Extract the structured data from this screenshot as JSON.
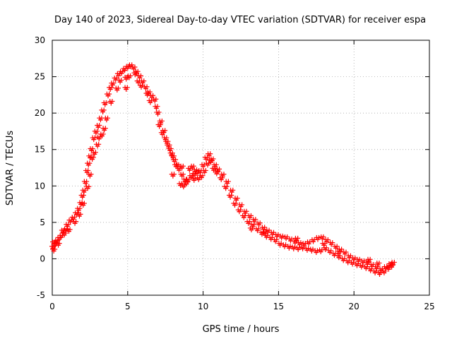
{
  "chart_data": {
    "type": "scatter",
    "title": "Day 140 of 2023, Sidereal Day-to-day VTEC variation (SDTVAR) for receiver espa",
    "xlabel": "GPS time / hours",
    "ylabel": "SDTVAR / TECUs",
    "xlim": [
      0,
      25
    ],
    "ylim": [
      -5,
      30
    ],
    "x_ticks": [
      0,
      5,
      10,
      15,
      20,
      25
    ],
    "y_ticks": [
      -5,
      0,
      5,
      10,
      15,
      20,
      25,
      30
    ],
    "grid": true,
    "marker": "plus",
    "series": [
      {
        "name": "espa",
        "color": "#ff0000",
        "points": [
          [
            0.05,
            1.6
          ],
          [
            0.1,
            1.2
          ],
          [
            0.2,
            2.0
          ],
          [
            0.3,
            2.4
          ],
          [
            0.45,
            2.8
          ],
          [
            0.6,
            3.1
          ],
          [
            0.8,
            3.4
          ],
          [
            0.9,
            4.0
          ],
          [
            1.0,
            4.6
          ],
          [
            1.2,
            5.2
          ],
          [
            1.4,
            5.6
          ],
          [
            1.6,
            6.2
          ],
          [
            1.75,
            6.8
          ],
          [
            1.9,
            7.6
          ],
          [
            2.0,
            8.6
          ],
          [
            2.1,
            9.3
          ],
          [
            2.2,
            10.5
          ],
          [
            2.3,
            12.0
          ],
          [
            2.4,
            13.0
          ],
          [
            2.5,
            14.0
          ],
          [
            2.6,
            15.0
          ],
          [
            2.75,
            16.5
          ],
          [
            2.9,
            17.4
          ],
          [
            3.05,
            18.2
          ],
          [
            3.2,
            19.2
          ],
          [
            3.35,
            20.3
          ],
          [
            3.5,
            21.3
          ],
          [
            3.7,
            22.5
          ],
          [
            3.85,
            23.4
          ],
          [
            4.0,
            24.0
          ],
          [
            4.2,
            24.7
          ],
          [
            4.4,
            25.3
          ],
          [
            4.6,
            25.6
          ],
          [
            4.8,
            26.0
          ],
          [
            5.0,
            26.3
          ],
          [
            5.2,
            26.5
          ],
          [
            5.4,
            26.2
          ],
          [
            5.6,
            25.6
          ],
          [
            5.8,
            25.0
          ],
          [
            6.0,
            24.3
          ],
          [
            6.2,
            23.5
          ],
          [
            6.4,
            22.8
          ],
          [
            6.6,
            22.3
          ],
          [
            6.8,
            21.8
          ],
          [
            7.0,
            20.0
          ],
          [
            7.2,
            18.8
          ],
          [
            7.4,
            17.5
          ],
          [
            7.6,
            16.0
          ],
          [
            7.8,
            15.0
          ],
          [
            8.0,
            14.0
          ],
          [
            8.2,
            12.8
          ],
          [
            8.4,
            12.3
          ],
          [
            8.6,
            11.5
          ],
          [
            8.8,
            10.8
          ],
          [
            9.0,
            10.8
          ],
          [
            9.2,
            11.3
          ],
          [
            9.4,
            11.6
          ],
          [
            9.6,
            11.8
          ],
          [
            9.8,
            12.0
          ],
          [
            10.0,
            12.8
          ],
          [
            10.2,
            13.8
          ],
          [
            10.4,
            14.3
          ],
          [
            10.6,
            13.6
          ],
          [
            10.8,
            12.8
          ],
          [
            11.0,
            12.2
          ],
          [
            11.3,
            11.5
          ],
          [
            11.6,
            10.5
          ],
          [
            11.9,
            9.3
          ],
          [
            12.2,
            8.2
          ],
          [
            12.5,
            7.3
          ],
          [
            12.8,
            6.4
          ],
          [
            13.1,
            5.8
          ],
          [
            13.4,
            5.3
          ],
          [
            13.7,
            4.8
          ],
          [
            14.0,
            4.2
          ],
          [
            14.3,
            3.8
          ],
          [
            14.6,
            3.5
          ],
          [
            14.9,
            3.2
          ],
          [
            15.2,
            3.0
          ],
          [
            15.5,
            2.9
          ],
          [
            15.8,
            2.6
          ],
          [
            16.1,
            2.3
          ],
          [
            16.4,
            2.1
          ],
          [
            16.7,
            2.0
          ],
          [
            17.0,
            2.2
          ],
          [
            17.3,
            2.5
          ],
          [
            17.6,
            2.8
          ],
          [
            17.9,
            2.9
          ],
          [
            18.2,
            2.5
          ],
          [
            18.5,
            2.1
          ],
          [
            18.8,
            1.6
          ],
          [
            19.1,
            1.2
          ],
          [
            19.4,
            0.8
          ],
          [
            19.7,
            0.3
          ],
          [
            20.0,
            0.0
          ],
          [
            20.3,
            -0.2
          ],
          [
            20.6,
            -0.4
          ],
          [
            20.9,
            -0.6
          ],
          [
            21.2,
            -0.9
          ],
          [
            21.5,
            -1.2
          ],
          [
            21.8,
            -1.5
          ],
          [
            22.1,
            -1.2
          ],
          [
            22.4,
            -0.8
          ],
          [
            22.6,
            -0.6
          ],
          [
            0.1,
            2.2
          ],
          [
            0.4,
            2.0
          ],
          [
            0.7,
            3.8
          ],
          [
            1.1,
            3.9
          ],
          [
            1.5,
            5.0
          ],
          [
            1.8,
            6.0
          ],
          [
            2.05,
            7.5
          ],
          [
            2.35,
            9.8
          ],
          [
            2.5,
            11.5
          ],
          [
            2.65,
            13.8
          ],
          [
            2.8,
            14.5
          ],
          [
            3.0,
            15.6
          ],
          [
            3.1,
            16.6
          ],
          [
            3.3,
            17.0
          ],
          [
            3.45,
            17.8
          ],
          [
            3.6,
            19.2
          ],
          [
            3.9,
            21.5
          ],
          [
            4.3,
            23.3
          ],
          [
            4.5,
            24.4
          ],
          [
            4.9,
            24.8
          ],
          [
            5.1,
            25.0
          ],
          [
            5.5,
            25.4
          ],
          [
            5.7,
            24.3
          ],
          [
            5.9,
            23.7
          ],
          [
            6.3,
            22.6
          ],
          [
            6.5,
            21.6
          ],
          [
            6.9,
            20.8
          ],
          [
            7.1,
            18.3
          ],
          [
            7.3,
            17.2
          ],
          [
            7.5,
            16.5
          ],
          [
            7.7,
            15.5
          ],
          [
            7.9,
            14.4
          ],
          [
            8.1,
            13.5
          ],
          [
            8.3,
            12.8
          ],
          [
            8.5,
            10.2
          ],
          [
            8.7,
            10.0
          ],
          [
            8.9,
            10.4
          ],
          [
            9.1,
            12.3
          ],
          [
            9.3,
            12.6
          ],
          [
            9.5,
            12.1
          ],
          [
            9.7,
            11.0
          ],
          [
            9.9,
            11.3
          ],
          [
            10.1,
            12.0
          ],
          [
            10.3,
            13.0
          ],
          [
            10.5,
            13.4
          ],
          [
            10.7,
            12.3
          ],
          [
            10.9,
            11.8
          ],
          [
            11.2,
            11.0
          ],
          [
            11.5,
            9.8
          ],
          [
            11.8,
            8.6
          ],
          [
            12.1,
            7.5
          ],
          [
            12.4,
            6.6
          ],
          [
            12.7,
            5.8
          ],
          [
            13.0,
            5.0
          ],
          [
            13.3,
            4.6
          ],
          [
            13.6,
            4.0
          ],
          [
            13.9,
            3.5
          ],
          [
            14.2,
            3.1
          ],
          [
            14.5,
            2.8
          ],
          [
            14.8,
            2.5
          ],
          [
            15.1,
            2.0
          ],
          [
            15.4,
            1.8
          ],
          [
            15.7,
            1.6
          ],
          [
            16.0,
            1.5
          ],
          [
            16.3,
            1.4
          ],
          [
            16.6,
            1.5
          ],
          [
            16.9,
            1.3
          ],
          [
            17.2,
            1.2
          ],
          [
            17.5,
            1.0
          ],
          [
            17.8,
            1.1
          ],
          [
            18.1,
            1.4
          ],
          [
            18.4,
            1.0
          ],
          [
            18.7,
            0.6
          ],
          [
            19.0,
            0.3
          ],
          [
            19.3,
            -0.1
          ],
          [
            19.6,
            -0.4
          ],
          [
            19.9,
            -0.6
          ],
          [
            20.2,
            -0.8
          ],
          [
            20.5,
            -1.0
          ],
          [
            20.8,
            -1.2
          ],
          [
            21.1,
            -1.5
          ],
          [
            21.4,
            -1.8
          ],
          [
            21.7,
            -2.0
          ],
          [
            22.0,
            -1.8
          ],
          [
            22.3,
            -1.3
          ],
          [
            22.5,
            -1.0
          ],
          [
            4.9,
            23.4
          ],
          [
            8.0,
            11.5
          ],
          [
            8.6,
            12.6
          ],
          [
            9.4,
            10.9
          ],
          [
            13.2,
            4.1
          ],
          [
            14.1,
            3.6
          ],
          [
            16.2,
            2.7
          ],
          [
            18.0,
            2.0
          ],
          [
            19.0,
            0.9
          ],
          [
            21.0,
            -0.2
          ],
          [
            21.6,
            -0.7
          ]
        ]
      }
    ]
  }
}
